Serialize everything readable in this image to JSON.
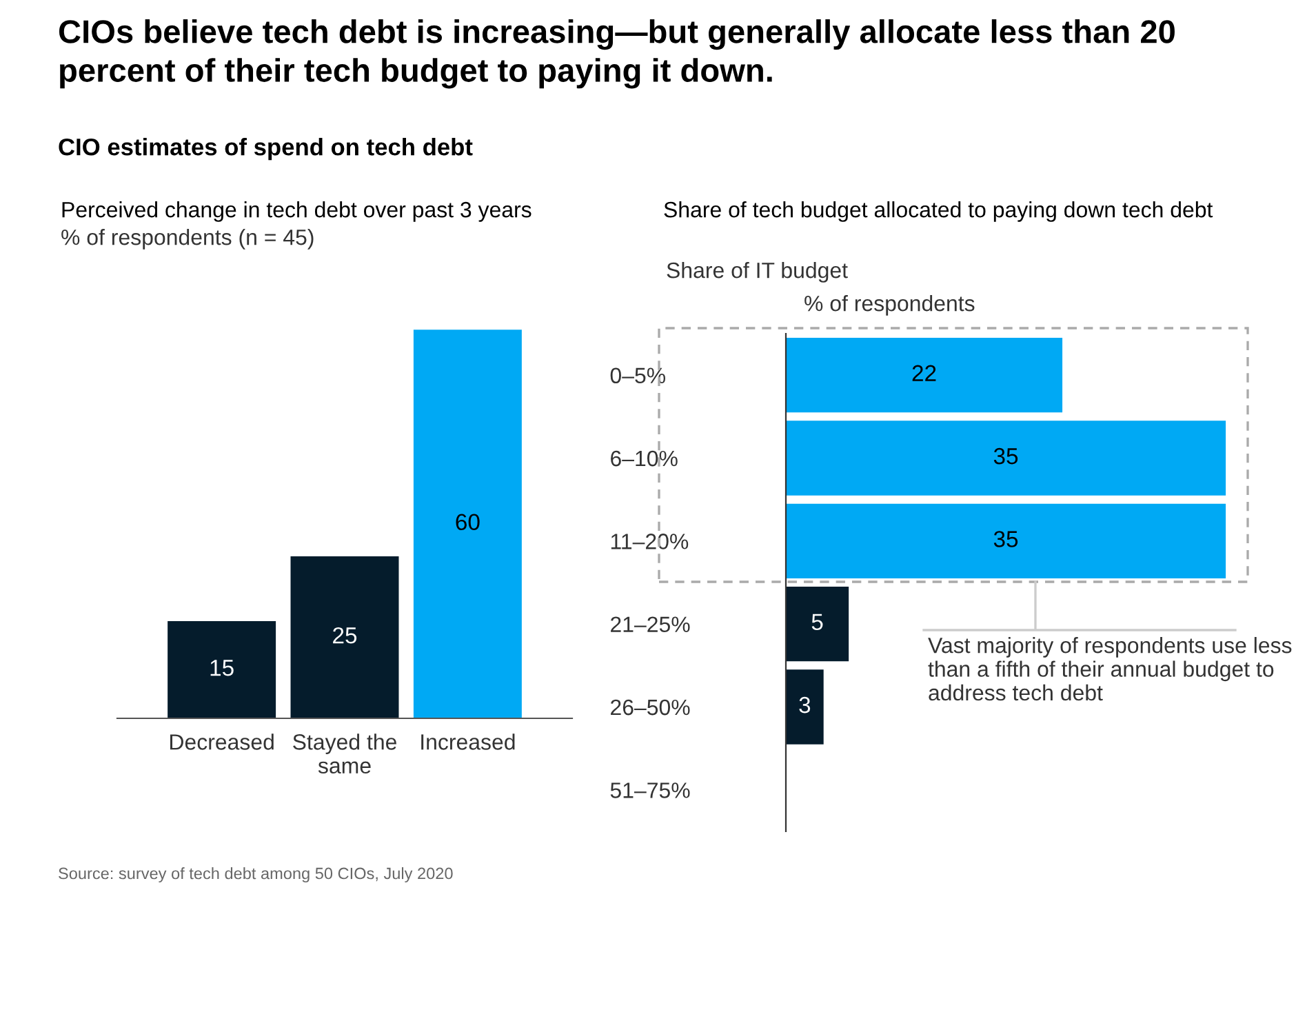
{
  "chart_data": [
    {
      "type": "bar",
      "title": "Perceived change in tech debt over past 3 years",
      "subtitle": "% of respondents (n = 45)",
      "annotations": [
        "CIOs believe tech debt is increasing—but generally allocate less than 20 percent of their tech budget to paying it down.",
        "CIO estimates of spend on tech debt",
        "Source: survey of tech debt among 50 CIOs, July 2020"
      ],
      "categories": [
        "Decreased",
        "Stayed the same",
        "Increased"
      ],
      "values": [
        15,
        25,
        60
      ],
      "colors": [
        "#051c2c",
        "#051c2c",
        "#00a9f4"
      ],
      "data_labels": true,
      "grid": false,
      "legend": false
    },
    {
      "type": "bar",
      "orientation": "horizontal",
      "title": "Share of tech budget allocated to paying down tech debt",
      "ylabel": "Share of IT budget",
      "xlabel": "% of respondents",
      "annotations": [
        "Vast majority of respondents use less than a fifth of their annual budget to address tech debt"
      ],
      "categories": [
        "0–5%",
        "6–10%",
        "11–20%",
        "21–25%",
        "26–50%",
        "51–75%"
      ],
      "values": [
        22,
        35,
        35,
        5,
        3,
        null
      ],
      "colors": [
        "#00a9f4",
        "#00a9f4",
        "#00a9f4",
        "#051c2c",
        "#051c2c",
        "#051c2c"
      ],
      "data_labels": true,
      "grid": false,
      "legend": false
    }
  ]
}
